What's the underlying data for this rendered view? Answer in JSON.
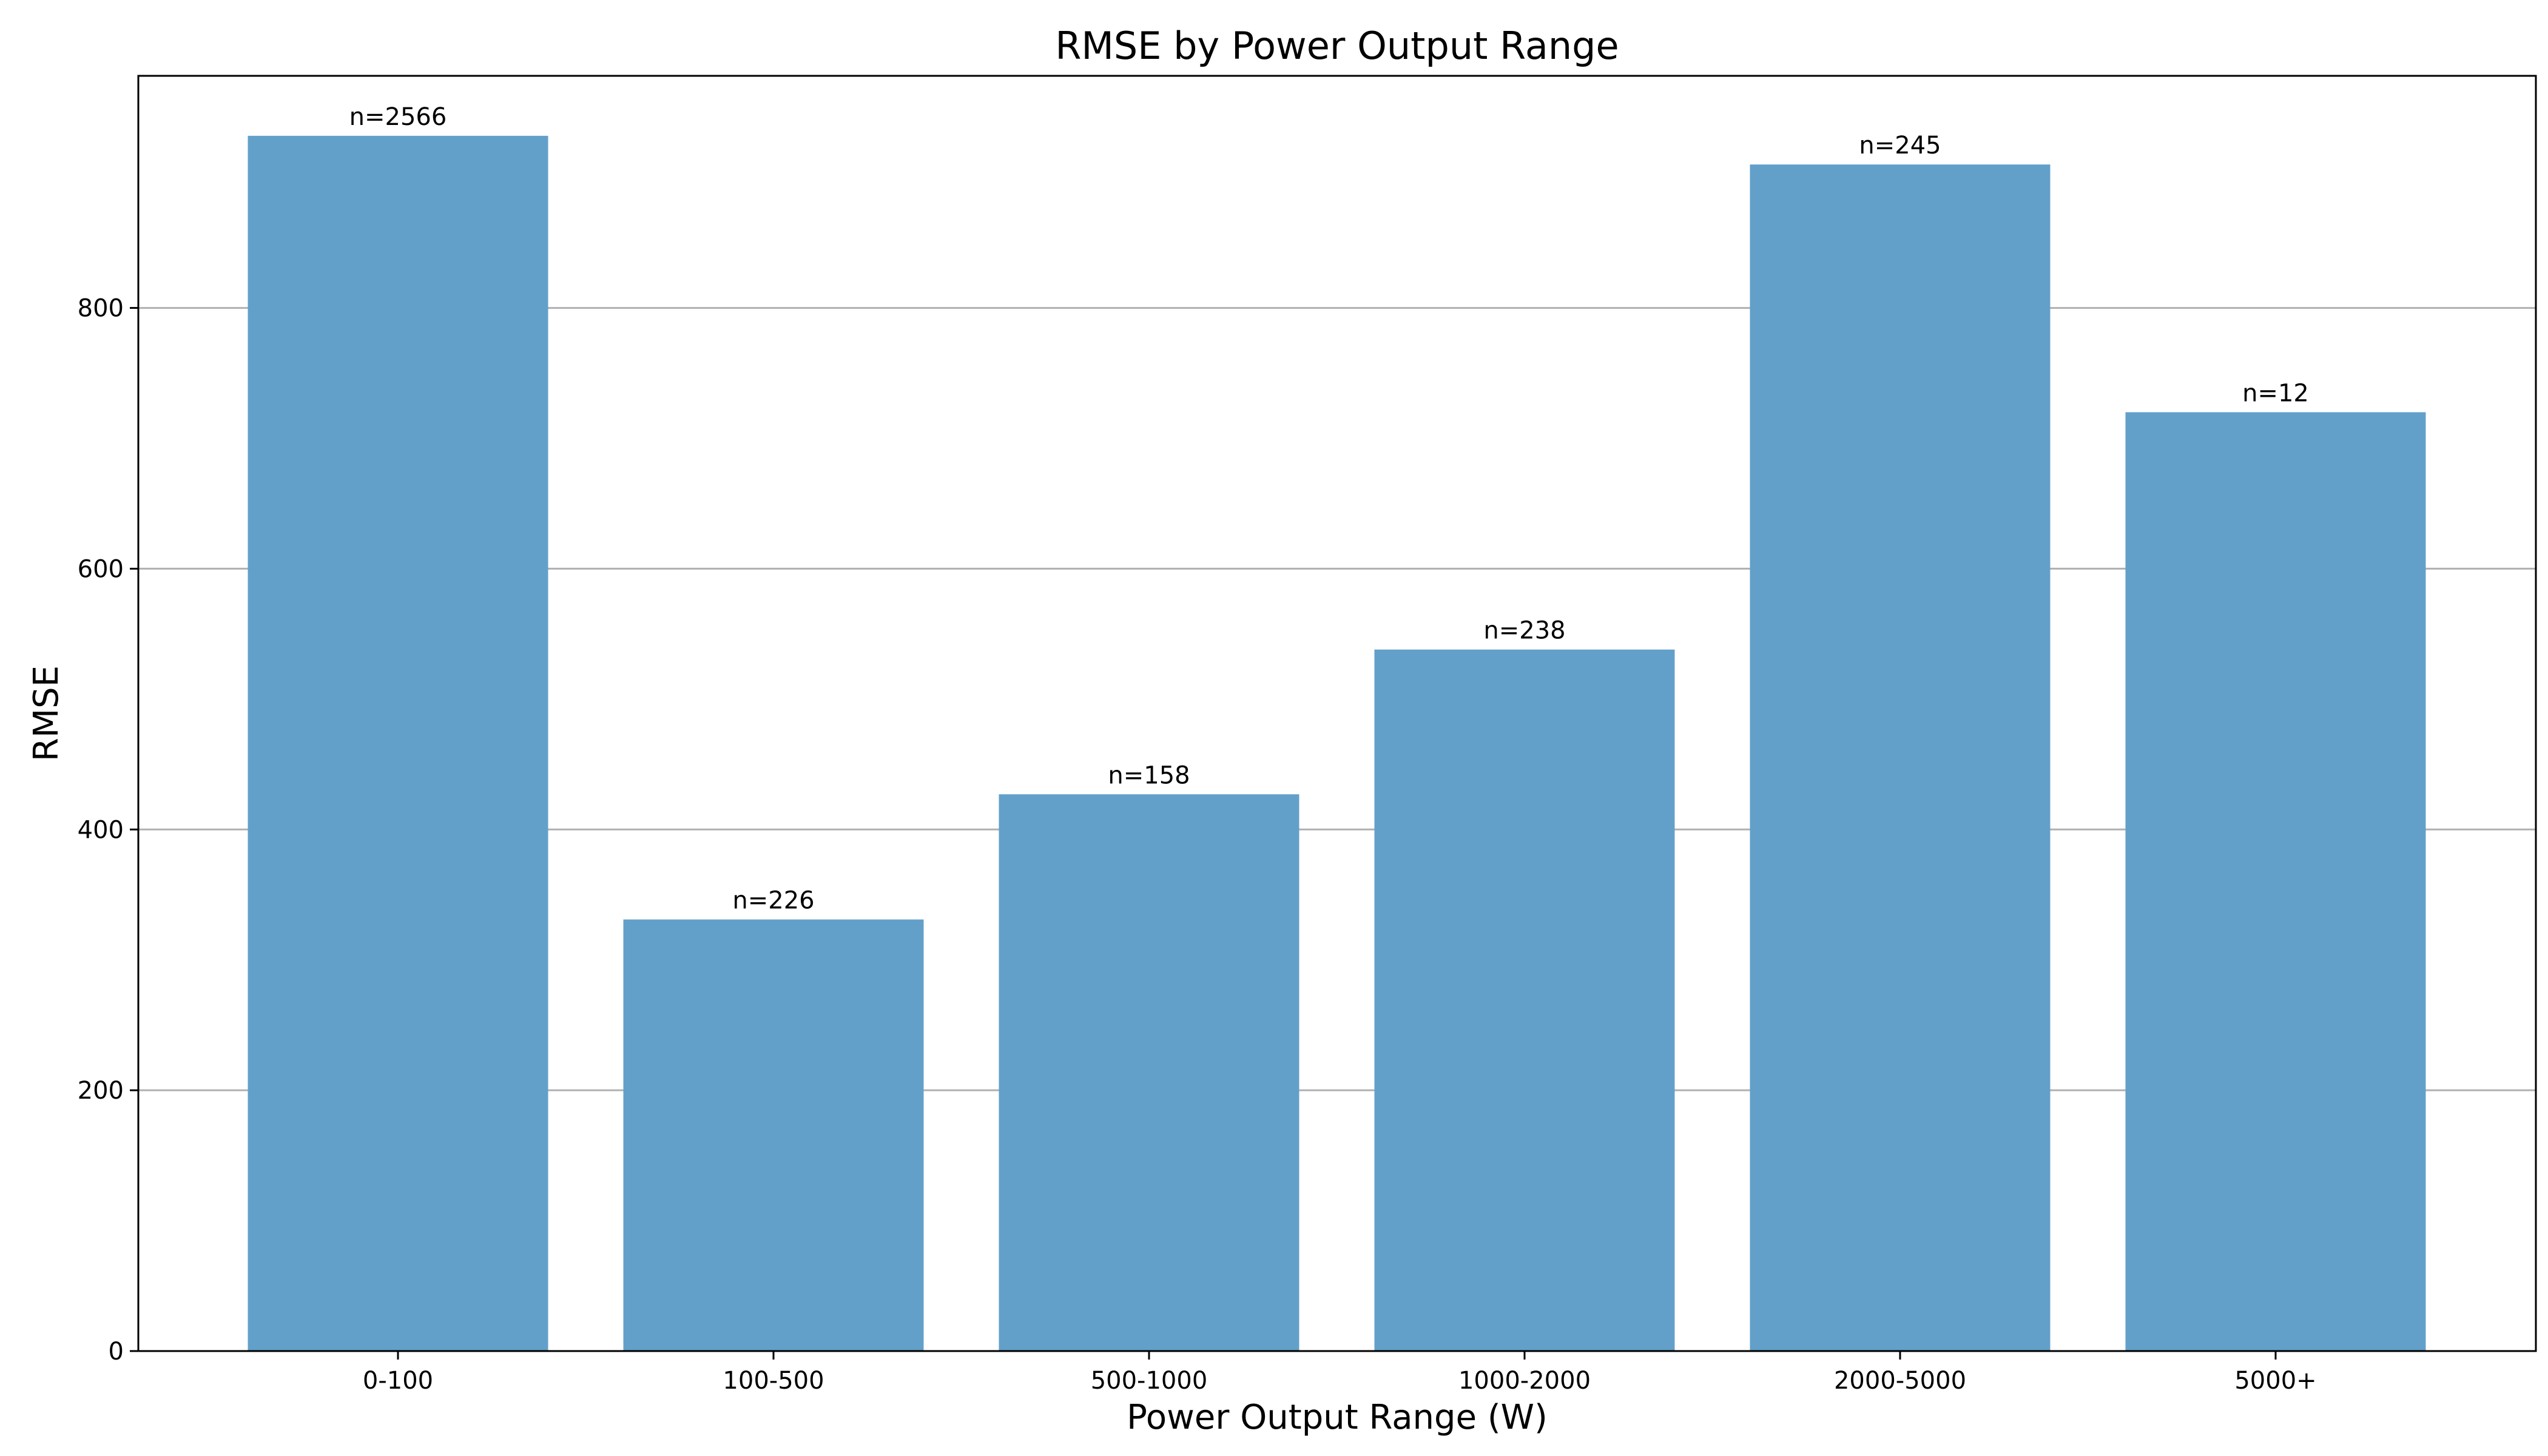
{
  "chart_data": {
    "type": "bar",
    "title": "RMSE by Power Output Range",
    "xlabel": "Power Output Range (W)",
    "ylabel": "RMSE",
    "categories": [
      "0-100",
      "100-500",
      "500-1000",
      "1000-2000",
      "2000-5000",
      "5000+"
    ],
    "values": [
      932,
      331,
      427,
      538,
      910,
      720
    ],
    "data_labels": [
      "n=2566",
      "n=226",
      "n=158",
      "n=238",
      "n=245",
      "n=12"
    ],
    "ylim": [
      0,
      978
    ],
    "yticks": [
      0,
      200,
      400,
      600,
      800
    ],
    "grid": "horizontal",
    "bar_color": "#62a0ca"
  }
}
